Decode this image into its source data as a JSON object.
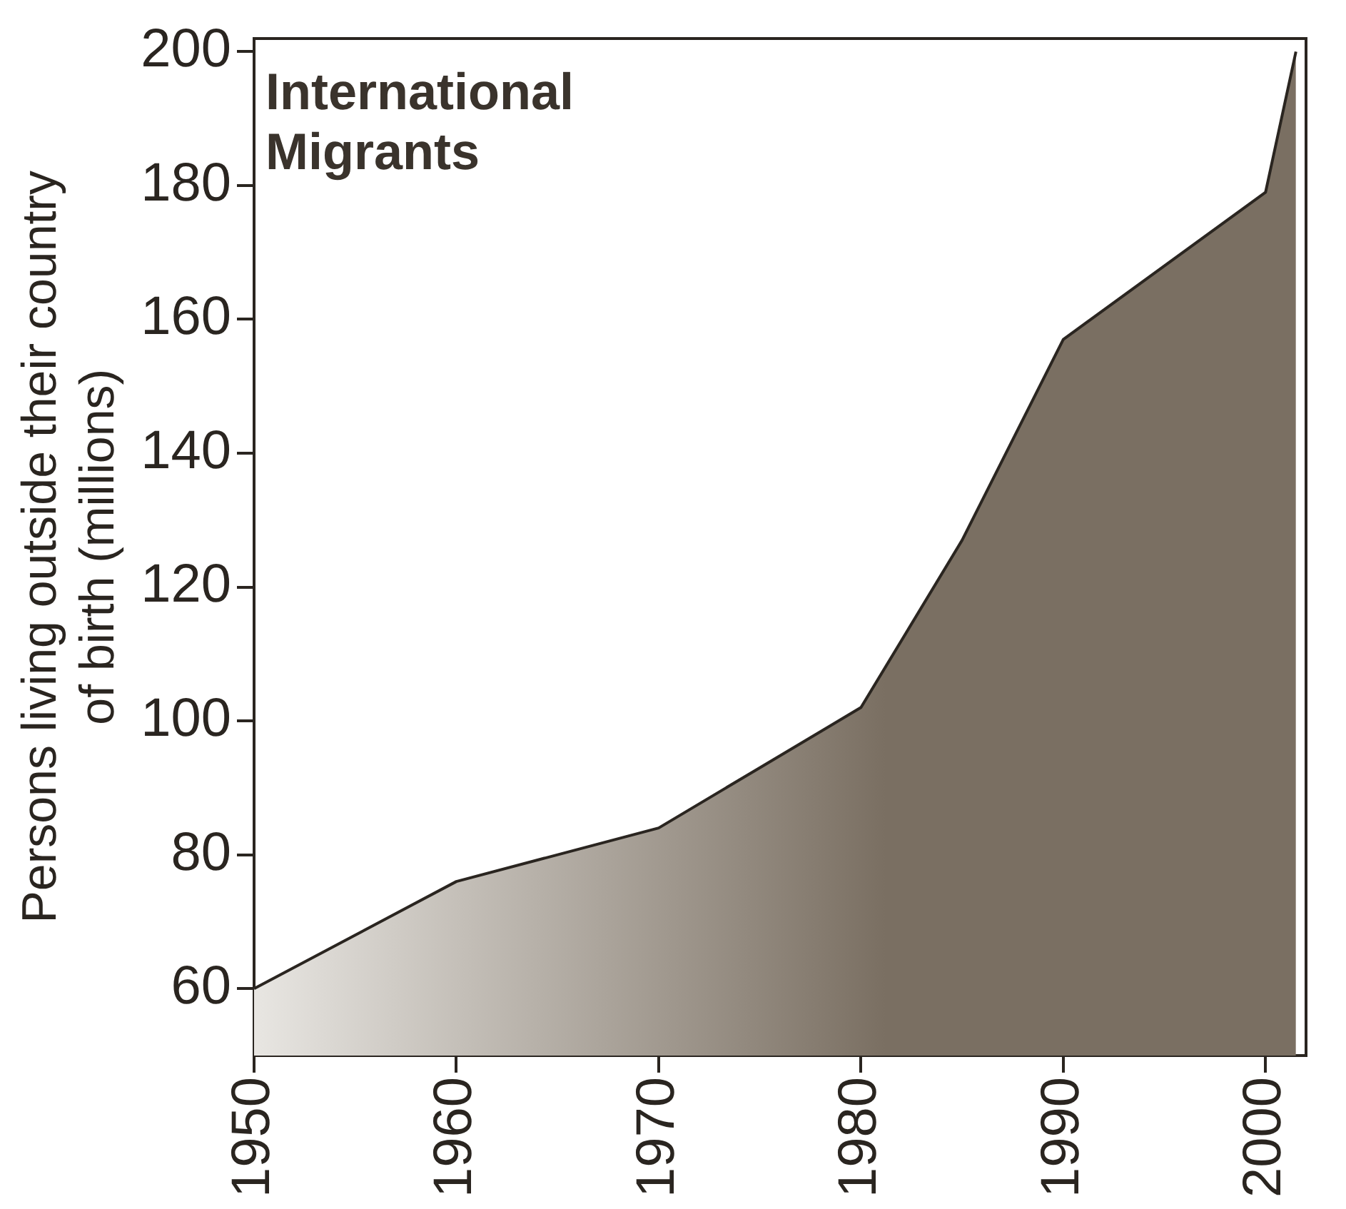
{
  "chart_data": {
    "type": "area",
    "title": "International Migrants",
    "ylabel": "Persons living outside their country of birth (millions)",
    "x": [
      1950,
      1960,
      1970,
      1975,
      1980,
      1985,
      1990,
      2000,
      2001.5
    ],
    "series": [
      {
        "color": "#7a6f62",
        "values": [
          60,
          76,
          84,
          93,
          102,
          127,
          157,
          179,
          200
        ]
      }
    ],
    "xlim": [
      1950,
      2002
    ],
    "xticks": [
      1950,
      1960,
      1970,
      1980,
      1990,
      2000
    ],
    "ylim": [
      50,
      202
    ],
    "yticks": [
      60,
      80,
      100,
      120,
      140,
      160,
      180,
      200
    ],
    "grid": false,
    "legend": false
  }
}
